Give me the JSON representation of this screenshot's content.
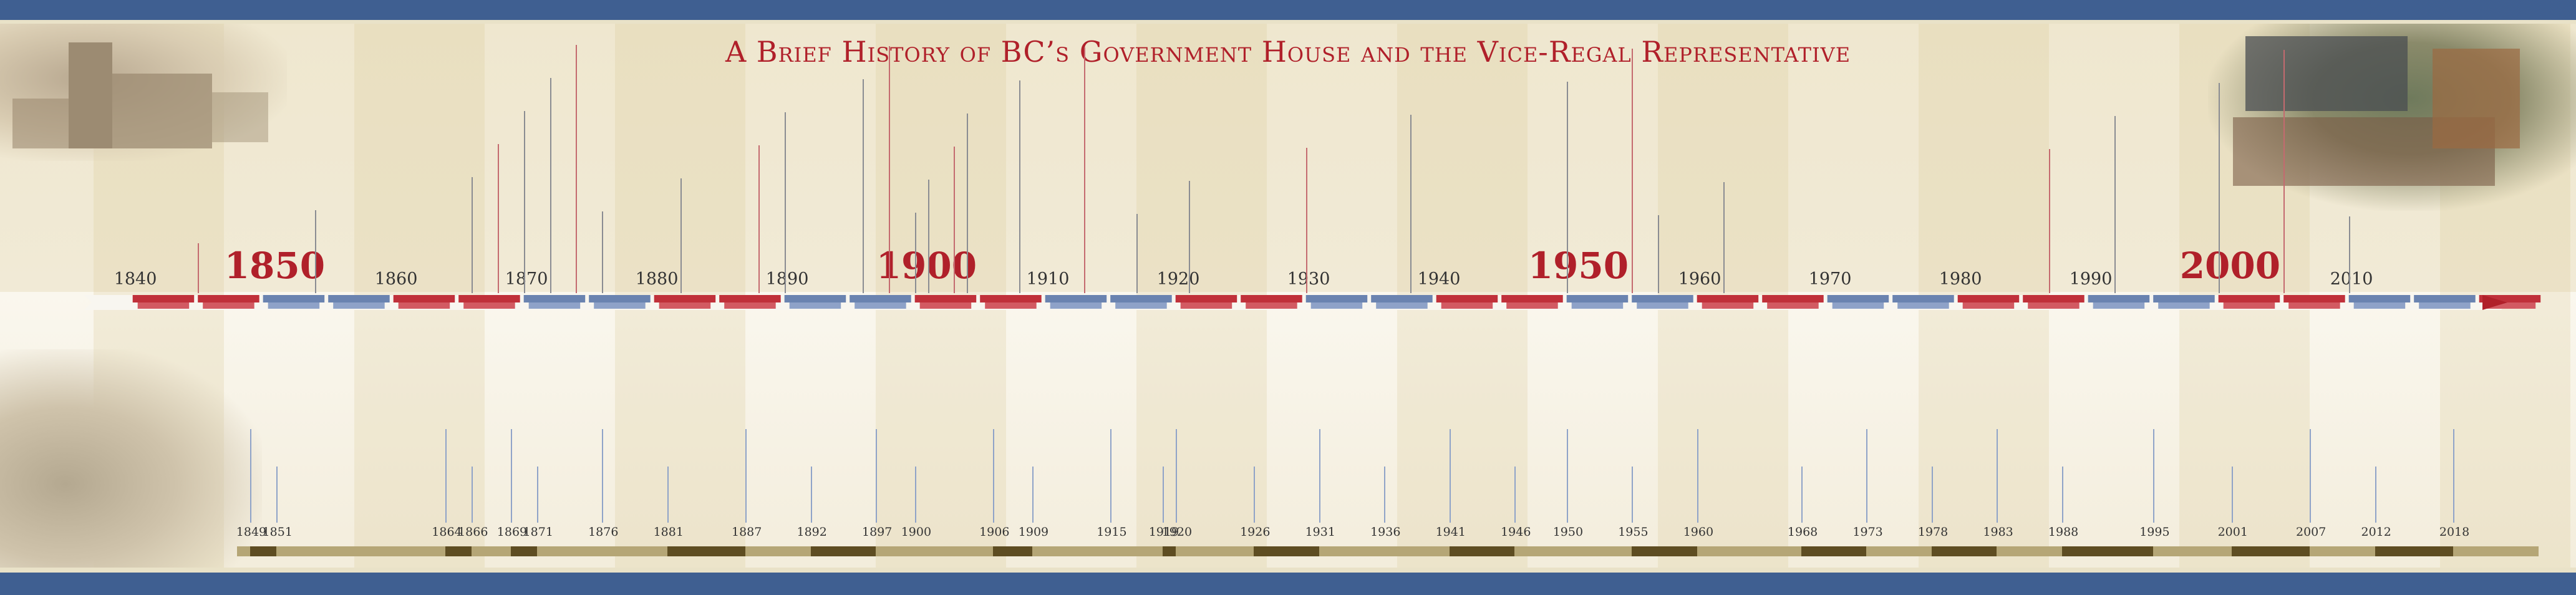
{
  "title": "A Brief History of BC’s Government House and the Vice-Regal Representative",
  "decade_labels": [
    "1840",
    "1860",
    "1870",
    "1880",
    "1890",
    "1910",
    "1920",
    "1930",
    "1940",
    "1960",
    "1970",
    "1980",
    "1990",
    "2010"
  ],
  "major_labels": [
    "1850",
    "1900",
    "1950",
    "2000"
  ],
  "event_years": [
    "1849",
    "1851",
    "1864",
    "1866",
    "1869",
    "1871",
    "1876",
    "1881",
    "1887",
    "1892",
    "1897",
    "1900",
    "1906",
    "1909",
    "1915",
    "1919",
    "1920",
    "1926",
    "1931",
    "1936",
    "1941",
    "1946",
    "1950",
    "1955",
    "1960",
    "1968",
    "1973",
    "1978",
    "1983",
    "1988",
    "1995",
    "2001",
    "2007",
    "2012",
    "2018"
  ],
  "colors": {
    "accent_red": "#b0202a",
    "accent_blue": "#3f5f91",
    "gold": "#b5a676",
    "dark_gold": "#5e4d22"
  },
  "images": {
    "castle": "Castle photo",
    "party": "Totem raising photo",
    "girls": "Children picnic photo"
  }
}
